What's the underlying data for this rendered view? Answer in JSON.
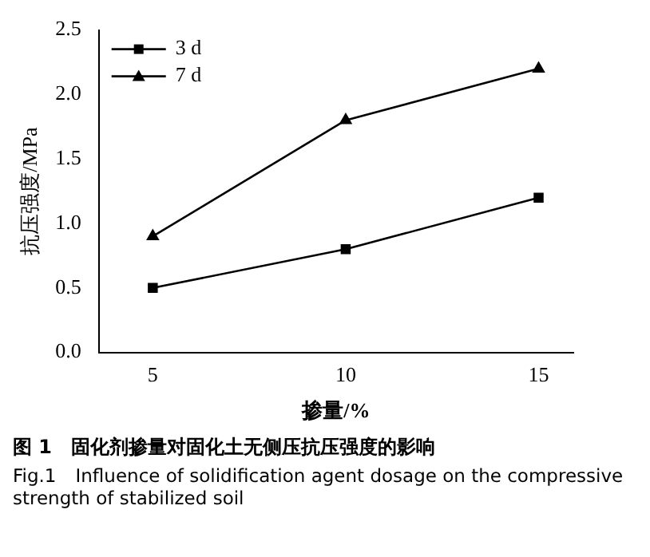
{
  "chart_data": {
    "type": "line",
    "xlabel": "掺量/%",
    "ylabel": "抗压强度/MPa",
    "x": [
      5,
      10,
      15
    ],
    "series": [
      {
        "name": "3 d",
        "color": "#000000",
        "marker": "square",
        "values": [
          0.5,
          0.8,
          1.2
        ]
      },
      {
        "name": "7 d",
        "color": "#000000",
        "marker": "triangle",
        "values": [
          0.9,
          1.8,
          2.2
        ]
      }
    ],
    "xlim": [
      3.6,
      15.9
    ],
    "xticks": [
      5,
      10,
      15
    ],
    "ylim": [
      0,
      2.5
    ],
    "yticks": [
      {
        "value": 0,
        "label": "0.0"
      },
      0.5,
      {
        "value": 1,
        "label": "1.0"
      },
      1.5,
      {
        "value": 2,
        "label": "2.0"
      },
      2.5
    ],
    "grid": false,
    "legend": "top left",
    "line_style": "solid",
    "annotations": [
      "图 1　固化剂掺量对固化土无侧压抗压强度的影响",
      "Fig.1　Influence of solidification agent dosage on the compressive strength of stabilized soil"
    ]
  }
}
